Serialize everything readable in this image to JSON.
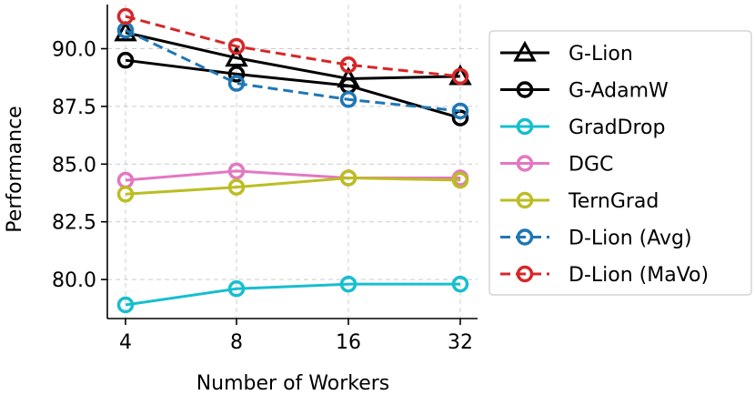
{
  "chart_data": {
    "type": "line",
    "xlabel": "Number of Workers",
    "ylabel": "Performance",
    "x": [
      4,
      8,
      16,
      32
    ],
    "x_tick_labels": [
      "4",
      "8",
      "16",
      "32"
    ],
    "x_scale": "log2",
    "y_ticks": [
      80.0,
      82.5,
      85.0,
      87.5,
      90.0
    ],
    "y_tick_labels": [
      "80.0",
      "82.5",
      "85.0",
      "87.5",
      "90.0"
    ],
    "ylim": [
      78.7,
      92.0
    ],
    "grid": true,
    "legend_position": "right",
    "series": [
      {
        "name": "G-Lion",
        "values": [
          90.7,
          89.6,
          88.7,
          88.8
        ],
        "color": "#000000",
        "marker": "triangle",
        "linestyle": "solid"
      },
      {
        "name": "G-AdamW",
        "values": [
          89.5,
          88.9,
          88.4,
          87.0
        ],
        "color": "#000000",
        "marker": "circle",
        "linestyle": "solid"
      },
      {
        "name": "GradDrop",
        "values": [
          78.9,
          79.6,
          79.8,
          79.8
        ],
        "color": "#17becf",
        "marker": "circle",
        "linestyle": "solid"
      },
      {
        "name": "DGC",
        "values": [
          84.3,
          84.7,
          84.4,
          84.4
        ],
        "color": "#e377c2",
        "marker": "circle",
        "linestyle": "solid"
      },
      {
        "name": "TernGrad",
        "values": [
          83.7,
          84.0,
          84.4,
          84.3
        ],
        "color": "#bcbd22",
        "marker": "circle",
        "linestyle": "solid"
      },
      {
        "name": "D-Lion (Avg)",
        "values": [
          90.8,
          88.5,
          87.8,
          87.3
        ],
        "color": "#1f77b4",
        "marker": "circle",
        "linestyle": "dashed"
      },
      {
        "name": "D-Lion (MaVo)",
        "values": [
          91.4,
          90.1,
          89.3,
          88.8
        ],
        "color": "#d62728",
        "marker": "circle",
        "linestyle": "dashed"
      }
    ]
  }
}
